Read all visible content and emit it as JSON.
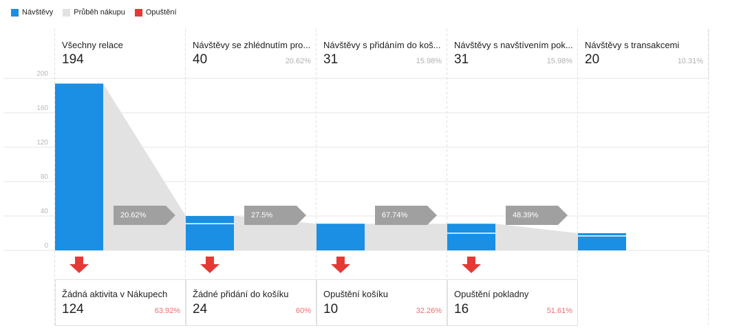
{
  "legend": [
    {
      "label": "Návštěvy",
      "color": "#1a8fe3"
    },
    {
      "label": "Průběh nákupu",
      "color": "#e2e2e2"
    },
    {
      "label": "Opuštění",
      "color": "#e53935"
    }
  ],
  "chart_data": {
    "type": "funnel",
    "y_ticks": [
      0,
      40,
      80,
      120,
      160,
      200
    ],
    "ylim": [
      0,
      200
    ],
    "grid": true,
    "steps": [
      {
        "title": "Všechny relace",
        "value": 194,
        "pct": "",
        "flow": "20.62%",
        "drop": {
          "title": "Žádná aktivita v Nákupech",
          "value": 124,
          "pct": "63.92%"
        }
      },
      {
        "title": "Návštěvy se zhlédnutím pro...",
        "value": 40,
        "pct": "20.62%",
        "flow": "27.5%",
        "drop": {
          "title": "Žádné přidání do košíku",
          "value": 24,
          "pct": "60%"
        }
      },
      {
        "title": "Návštěvy s přidáním do koš...",
        "value": 31,
        "pct": "15.98%",
        "flow": "67.74%",
        "drop": {
          "title": "Opuštění košíku",
          "value": 10,
          "pct": "32.26%"
        }
      },
      {
        "title": "Návštěvy s navštívením pok...",
        "value": 31,
        "pct": "15.98%",
        "flow": "48.39%",
        "drop": {
          "title": "Opuštění pokladny",
          "value": 16,
          "pct": "51.61%"
        }
      },
      {
        "title": "Návštěvy s transakcemi",
        "value": 20,
        "pct": "10.31%",
        "flow": "",
        "drop": null
      }
    ],
    "colors": {
      "bar": "#1a8fe3",
      "flow": "#e2e2e2",
      "arrow": "#a0a0a0",
      "drop": "#e53935",
      "grid": "#e6e6e6"
    }
  }
}
